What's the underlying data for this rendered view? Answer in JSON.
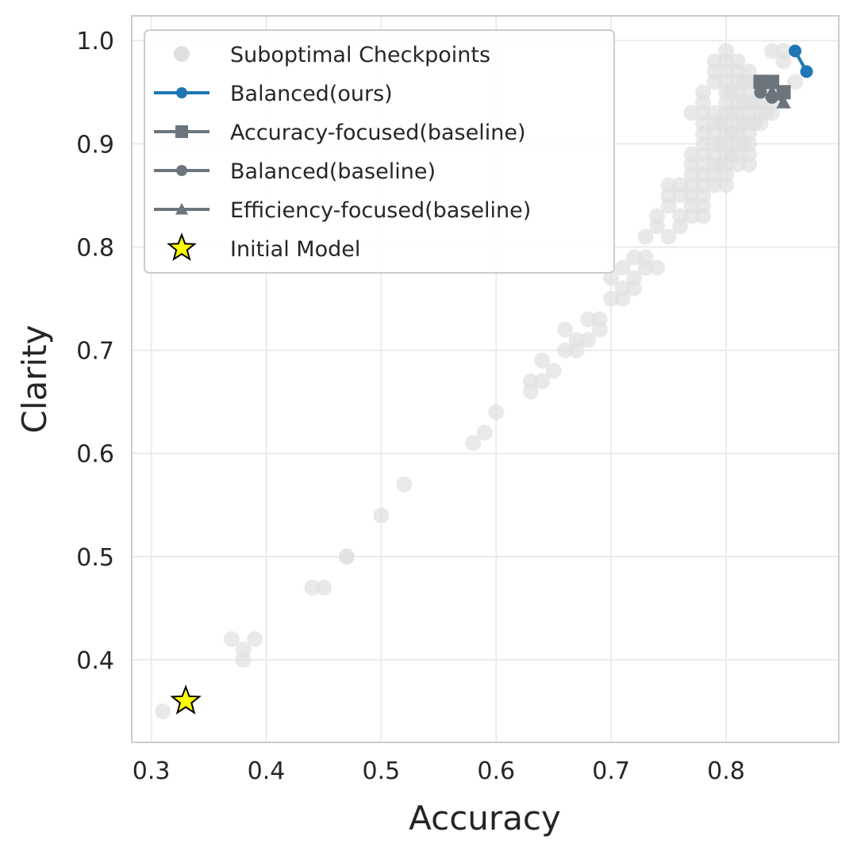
{
  "chart_data": {
    "type": "scatter",
    "xlabel": "Accuracy",
    "ylabel": "Clarity",
    "xlim": [
      0.283,
      0.898
    ],
    "ylim": [
      0.32,
      1.024
    ],
    "xticks": [
      0.3,
      0.4,
      0.5,
      0.6,
      0.7,
      0.8
    ],
    "xtick_labels": [
      "0.3",
      "0.4",
      "0.5",
      "0.6",
      "0.7",
      "0.8"
    ],
    "yticks": [
      0.4,
      0.5,
      0.6,
      0.7,
      0.8,
      0.9,
      1.0
    ],
    "ytick_labels": [
      "0.4",
      "0.5",
      "0.6",
      "0.7",
      "0.8",
      "0.9",
      "1.0"
    ],
    "grid": true,
    "legend_position": "top-left",
    "legend": [
      {
        "label": "Suboptimal Checkpoints",
        "marker": "circle",
        "line": false,
        "color": "#e0e0e0"
      },
      {
        "label": "Balanced(ours)",
        "marker": "circle",
        "line": true,
        "color": "#1f77b4"
      },
      {
        "label": "Accuracy-focused(baseline)",
        "marker": "square",
        "line": true,
        "color": "#6c757d"
      },
      {
        "label": "Balanced(baseline)",
        "marker": "circle",
        "line": true,
        "color": "#6c757d"
      },
      {
        "label": "Efficiency-focused(baseline)",
        "marker": "triangle",
        "line": true,
        "color": "#6c757d"
      },
      {
        "label": "Initial Model",
        "marker": "star",
        "line": false,
        "color": "#ffff00"
      }
    ],
    "series": [
      {
        "name": "Suboptimal Checkpoints",
        "kind": "scatter",
        "color": "#e0e0e0",
        "points": [
          [
            0.31,
            0.35
          ],
          [
            0.37,
            0.42
          ],
          [
            0.38,
            0.41
          ],
          [
            0.38,
            0.4
          ],
          [
            0.39,
            0.42
          ],
          [
            0.44,
            0.47
          ],
          [
            0.45,
            0.47
          ],
          [
            0.47,
            0.5
          ],
          [
            0.47,
            0.5
          ],
          [
            0.5,
            0.54
          ],
          [
            0.52,
            0.57
          ],
          [
            0.58,
            0.61
          ],
          [
            0.59,
            0.62
          ],
          [
            0.6,
            0.64
          ],
          [
            0.63,
            0.66
          ],
          [
            0.63,
            0.67
          ],
          [
            0.64,
            0.67
          ],
          [
            0.64,
            0.69
          ],
          [
            0.65,
            0.68
          ],
          [
            0.66,
            0.7
          ],
          [
            0.66,
            0.72
          ],
          [
            0.67,
            0.7
          ],
          [
            0.67,
            0.71
          ],
          [
            0.68,
            0.71
          ],
          [
            0.68,
            0.73
          ],
          [
            0.69,
            0.72
          ],
          [
            0.69,
            0.73
          ],
          [
            0.7,
            0.75
          ],
          [
            0.7,
            0.77
          ],
          [
            0.71,
            0.75
          ],
          [
            0.71,
            0.76
          ],
          [
            0.71,
            0.78
          ],
          [
            0.72,
            0.76
          ],
          [
            0.72,
            0.77
          ],
          [
            0.72,
            0.79
          ],
          [
            0.73,
            0.78
          ],
          [
            0.73,
            0.79
          ],
          [
            0.73,
            0.81
          ],
          [
            0.74,
            0.78
          ],
          [
            0.74,
            0.82
          ],
          [
            0.74,
            0.83
          ],
          [
            0.75,
            0.81
          ],
          [
            0.75,
            0.84
          ],
          [
            0.75,
            0.85
          ],
          [
            0.75,
            0.86
          ],
          [
            0.76,
            0.82
          ],
          [
            0.76,
            0.83
          ],
          [
            0.76,
            0.85
          ],
          [
            0.76,
            0.86
          ],
          [
            0.77,
            0.83
          ],
          [
            0.77,
            0.84
          ],
          [
            0.77,
            0.85
          ],
          [
            0.77,
            0.86
          ],
          [
            0.77,
            0.87
          ],
          [
            0.77,
            0.88
          ],
          [
            0.77,
            0.89
          ],
          [
            0.77,
            0.93
          ],
          [
            0.78,
            0.83
          ],
          [
            0.78,
            0.84
          ],
          [
            0.78,
            0.85
          ],
          [
            0.78,
            0.86
          ],
          [
            0.78,
            0.87
          ],
          [
            0.78,
            0.88
          ],
          [
            0.78,
            0.89
          ],
          [
            0.78,
            0.9
          ],
          [
            0.78,
            0.91
          ],
          [
            0.78,
            0.92
          ],
          [
            0.78,
            0.93
          ],
          [
            0.78,
            0.94
          ],
          [
            0.78,
            0.95
          ],
          [
            0.79,
            0.86
          ],
          [
            0.79,
            0.87
          ],
          [
            0.79,
            0.88
          ],
          [
            0.79,
            0.89
          ],
          [
            0.79,
            0.9
          ],
          [
            0.79,
            0.91
          ],
          [
            0.79,
            0.92
          ],
          [
            0.79,
            0.93
          ],
          [
            0.79,
            0.96
          ],
          [
            0.79,
            0.97
          ],
          [
            0.79,
            0.98
          ],
          [
            0.795,
            0.88
          ],
          [
            0.795,
            0.9
          ],
          [
            0.795,
            0.92
          ],
          [
            0.8,
            0.86
          ],
          [
            0.8,
            0.87
          ],
          [
            0.8,
            0.88
          ],
          [
            0.8,
            0.89
          ],
          [
            0.8,
            0.9
          ],
          [
            0.8,
            0.91
          ],
          [
            0.8,
            0.92
          ],
          [
            0.8,
            0.93
          ],
          [
            0.8,
            0.94
          ],
          [
            0.8,
            0.95
          ],
          [
            0.8,
            0.96
          ],
          [
            0.8,
            0.97
          ],
          [
            0.8,
            0.98
          ],
          [
            0.8,
            0.99
          ],
          [
            0.805,
            0.89
          ],
          [
            0.805,
            0.91
          ],
          [
            0.805,
            0.93
          ],
          [
            0.805,
            0.95
          ],
          [
            0.81,
            0.88
          ],
          [
            0.81,
            0.89
          ],
          [
            0.81,
            0.9
          ],
          [
            0.81,
            0.91
          ],
          [
            0.81,
            0.92
          ],
          [
            0.81,
            0.93
          ],
          [
            0.81,
            0.94
          ],
          [
            0.81,
            0.95
          ],
          [
            0.81,
            0.96
          ],
          [
            0.81,
            0.97
          ],
          [
            0.81,
            0.98
          ],
          [
            0.815,
            0.9
          ],
          [
            0.815,
            0.92
          ],
          [
            0.815,
            0.94
          ],
          [
            0.815,
            0.96
          ],
          [
            0.82,
            0.88
          ],
          [
            0.82,
            0.89
          ],
          [
            0.82,
            0.9
          ],
          [
            0.82,
            0.91
          ],
          [
            0.82,
            0.92
          ],
          [
            0.82,
            0.93
          ],
          [
            0.82,
            0.94
          ],
          [
            0.82,
            0.95
          ],
          [
            0.82,
            0.96
          ],
          [
            0.82,
            0.97
          ],
          [
            0.825,
            0.92
          ],
          [
            0.825,
            0.94
          ],
          [
            0.825,
            0.96
          ],
          [
            0.83,
            0.92
          ],
          [
            0.83,
            0.93
          ],
          [
            0.83,
            0.94
          ],
          [
            0.83,
            0.95
          ],
          [
            0.83,
            0.96
          ],
          [
            0.835,
            0.93
          ],
          [
            0.835,
            0.95
          ],
          [
            0.84,
            0.93
          ],
          [
            0.84,
            0.94
          ],
          [
            0.84,
            0.95
          ],
          [
            0.84,
            0.99
          ],
          [
            0.85,
            0.98
          ],
          [
            0.85,
            0.99
          ],
          [
            0.86,
            0.96
          ]
        ]
      },
      {
        "name": "Balanced(ours)",
        "kind": "line",
        "marker": "circle",
        "color": "#1f77b4",
        "points": [
          [
            0.86,
            0.99
          ],
          [
            0.87,
            0.97
          ]
        ]
      },
      {
        "name": "Accuracy-focused(baseline)",
        "kind": "line",
        "marker": "square",
        "color": "#6c757d",
        "points": [
          [
            0.83,
            0.96
          ],
          [
            0.84,
            0.96
          ],
          [
            0.85,
            0.95
          ]
        ]
      },
      {
        "name": "Balanced(baseline)",
        "kind": "line",
        "marker": "circle",
        "color": "#6c757d",
        "points": [
          [
            0.83,
            0.95
          ],
          [
            0.84,
            0.96
          ],
          [
            0.84,
            0.945
          ]
        ]
      },
      {
        "name": "Efficiency-focused(baseline)",
        "kind": "line",
        "marker": "triangle",
        "color": "#6c757d",
        "points": [
          [
            0.84,
            0.95
          ],
          [
            0.85,
            0.94
          ]
        ]
      },
      {
        "name": "Initial Model",
        "kind": "scatter",
        "marker": "star",
        "color": "#ffff00",
        "points": [
          [
            0.33,
            0.36
          ]
        ]
      }
    ]
  }
}
